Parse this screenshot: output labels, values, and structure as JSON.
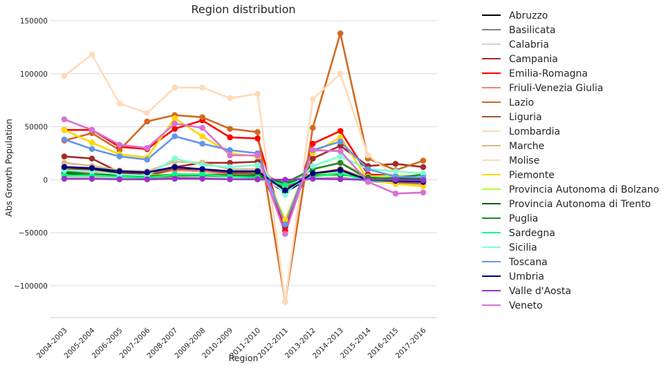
{
  "chart_data": {
    "type": "line",
    "title": "Region distribution",
    "xlabel": "Region",
    "ylabel": "Abs Growth Population",
    "ylim": [
      -130000,
      150000
    ],
    "yticks": [
      -100000,
      -50000,
      0,
      50000,
      100000,
      150000
    ],
    "ytick_labels": [
      "−100000",
      "−50000",
      "0",
      "50000",
      "100000",
      "150000"
    ],
    "grid": "horizontal",
    "legend_position": "right",
    "categories": [
      "2004-2003",
      "2005-2004",
      "2006-2005",
      "2007-2006",
      "2008-2007",
      "2009-2008",
      "2010-2009",
      "2011-2010",
      "2012-2011",
      "2013-2012",
      "2014-2013",
      "2015-2014",
      "2016-2015",
      "2017-2016"
    ],
    "series": [
      {
        "name": "Abruzzo",
        "color": "#000000",
        "values": [
          10000,
          10000,
          6000,
          4000,
          10000,
          8000,
          6000,
          5000,
          -12000,
          4000,
          8000,
          -1000,
          -1000,
          -2000
        ]
      },
      {
        "name": "Basilicata",
        "color": "#808080",
        "values": [
          1000,
          1000,
          500,
          0,
          2000,
          1500,
          500,
          0,
          -3000,
          1000,
          2000,
          -1000,
          -2000,
          -2000
        ]
      },
      {
        "name": "Calabria",
        "color": "#d3d3d3",
        "values": [
          3000,
          3000,
          2000,
          1000,
          5000,
          4000,
          3000,
          2000,
          -10000,
          4000,
          8000,
          -1000,
          -3000,
          -4000
        ]
      },
      {
        "name": "Campania",
        "color": "#a52a2a",
        "values": [
          22000,
          20000,
          7000,
          6000,
          12000,
          16000,
          16000,
          17000,
          -45000,
          20000,
          32000,
          13000,
          15000,
          12000
        ]
      },
      {
        "name": "Emilia-Romagna",
        "color": "#ff0000",
        "values": [
          47000,
          47000,
          31000,
          29000,
          48000,
          56000,
          40000,
          39000,
          -48000,
          34000,
          46000,
          5000,
          4000,
          2000
        ]
      },
      {
        "name": "Friuli-Venezia Giulia",
        "color": "#fa8072",
        "values": [
          8000,
          6000,
          5000,
          4000,
          9000,
          8000,
          5000,
          5000,
          -6000,
          6000,
          10000,
          1000,
          0,
          -1000
        ]
      },
      {
        "name": "Lazio",
        "color": "#d2691e",
        "values": [
          37000,
          44000,
          28000,
          55000,
          61000,
          59000,
          48000,
          45000,
          -115000,
          49000,
          138000,
          20000,
          9000,
          18000
        ]
      },
      {
        "name": "Liguria",
        "color": "#a0522d",
        "values": [
          10000,
          9000,
          5000,
          3000,
          11000,
          10000,
          7000,
          7000,
          -8000,
          5000,
          10000,
          -1000,
          -3000,
          -4000
        ]
      },
      {
        "name": "Lombardia",
        "color": "#ffdab9",
        "values": [
          98000,
          118000,
          72000,
          63000,
          87000,
          87000,
          77000,
          81000,
          -115000,
          76000,
          100000,
          23000,
          3000,
          -3000
        ]
      },
      {
        "name": "Marche",
        "color": "#deb887",
        "values": [
          16000,
          13000,
          9000,
          8000,
          17000,
          16000,
          10000,
          10000,
          -6000,
          10000,
          16000,
          3000,
          -4000,
          -5000
        ]
      },
      {
        "name": "Molise",
        "color": "#f5deb3",
        "values": [
          1000,
          500,
          0,
          0,
          1000,
          1000,
          500,
          0,
          -2000,
          1000,
          1000,
          -500,
          -1000,
          -2000
        ]
      },
      {
        "name": "Piemonte",
        "color": "#ffd700",
        "values": [
          47000,
          35000,
          24000,
          21000,
          58000,
          41000,
          25000,
          22000,
          -38000,
          25000,
          40000,
          0,
          -4000,
          -6000
        ]
      },
      {
        "name": "Provincia Autonoma di Bolzano",
        "color": "#adff2f",
        "values": [
          5000,
          5000,
          4000,
          4000,
          5000,
          5000,
          4000,
          3000,
          -5000,
          5000,
          6000,
          3000,
          4000,
          3000
        ]
      },
      {
        "name": "Provincia Autonoma di Trento",
        "color": "#006400",
        "values": [
          6000,
          5000,
          4000,
          3000,
          5000,
          5000,
          4000,
          4000,
          -4000,
          4000,
          5000,
          2000,
          1000,
          1000
        ]
      },
      {
        "name": "Puglia",
        "color": "#228b22",
        "values": [
          8000,
          5000,
          3000,
          2000,
          4000,
          4000,
          3000,
          5000,
          -3000,
          10000,
          16000,
          1000,
          2000,
          5000
        ]
      },
      {
        "name": "Sardegna",
        "color": "#00ff7f",
        "values": [
          4000,
          4000,
          3000,
          2000,
          5000,
          5000,
          3000,
          2000,
          -5000,
          3000,
          6000,
          -1000,
          -1000,
          -2000
        ]
      },
      {
        "name": "Sicilia",
        "color": "#7fffd4",
        "values": [
          9000,
          8000,
          5000,
          4000,
          20000,
          14000,
          12000,
          14000,
          -14000,
          13000,
          22000,
          10000,
          8000,
          6000
        ]
      },
      {
        "name": "Toscana",
        "color": "#6495ed",
        "values": [
          38000,
          29000,
          22000,
          19000,
          41000,
          34000,
          28000,
          25000,
          -42000,
          28000,
          36000,
          10000,
          3000,
          2000
        ]
      },
      {
        "name": "Umbria",
        "color": "#000080",
        "values": [
          12000,
          11000,
          8000,
          7000,
          12000,
          10000,
          8000,
          8000,
          -10000,
          6000,
          9000,
          0,
          -1000,
          -2000
        ]
      },
      {
        "name": "Valle d'Aosta",
        "color": "#9932cc",
        "values": [
          1000,
          1000,
          500,
          500,
          1000,
          1000,
          500,
          500,
          0,
          1000,
          500,
          0,
          0,
          -500
        ]
      },
      {
        "name": "Veneto",
        "color": "#da70d6",
        "values": [
          57000,
          47000,
          33000,
          30000,
          53000,
          49000,
          23000,
          23000,
          -51000,
          28000,
          27000,
          -2000,
          -13000,
          -12000
        ]
      }
    ]
  }
}
